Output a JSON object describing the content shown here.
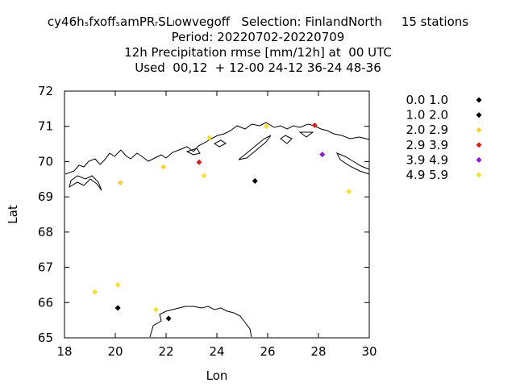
{
  "header": {
    "line1": "cy46hₛfxoffₛamPRᵣSLₗowvegoff   Selection: FinlandNorth     15 stations",
    "line2": "Period: 20220702-20220709",
    "line3": "12h Precipitation rmse [mm/12h] at  00 UTC",
    "line4": "Used  00,12  + 12-00 24-12 36-24 48-36"
  },
  "chart_data": {
    "type": "scatter",
    "xlabel": "Lon",
    "ylabel": "Lat",
    "xlim": [
      18,
      30
    ],
    "ylim": [
      65,
      72
    ],
    "xticks": [
      "18",
      "20",
      "22",
      "24",
      "26",
      "28",
      "30"
    ],
    "yticks": [
      "65",
      "66",
      "67",
      "68",
      "69",
      "70",
      "71",
      "72"
    ],
    "grid": false,
    "legend_position": "right",
    "classes": [
      {
        "label": "0.0 1.0",
        "color": "#000000"
      },
      {
        "label": "1.0 2.0",
        "color": "#000000"
      },
      {
        "label": "2.0 2.9",
        "color": "#f5d142"
      },
      {
        "label": "2.9 3.9",
        "color": "#d62020"
      },
      {
        "label": "3.9 4.9",
        "color": "#8a1ad6"
      },
      {
        "label": "4.9 5.9",
        "color": "#f5e03a"
      }
    ],
    "points": [
      {
        "lon": 19.2,
        "lat": 66.3,
        "class": 5
      },
      {
        "lon": 20.1,
        "lat": 66.5,
        "class": 5
      },
      {
        "lon": 20.1,
        "lat": 65.85,
        "class": 1
      },
      {
        "lon": 20.2,
        "lat": 69.4,
        "class": 2
      },
      {
        "lon": 21.6,
        "lat": 65.8,
        "class": 5
      },
      {
        "lon": 21.9,
        "lat": 69.85,
        "class": 2
      },
      {
        "lon": 22.1,
        "lat": 65.55,
        "class": 1
      },
      {
        "lon": 23.3,
        "lat": 69.98,
        "class": 3
      },
      {
        "lon": 23.5,
        "lat": 69.6,
        "class": 5
      },
      {
        "lon": 23.7,
        "lat": 70.68,
        "class": 5
      },
      {
        "lon": 25.5,
        "lat": 69.45,
        "class": 1
      },
      {
        "lon": 25.95,
        "lat": 71.0,
        "class": 5
      },
      {
        "lon": 27.85,
        "lat": 71.03,
        "class": 3
      },
      {
        "lon": 28.15,
        "lat": 70.2,
        "class": 4
      },
      {
        "lon": 29.2,
        "lat": 69.15,
        "class": 5
      }
    ]
  }
}
